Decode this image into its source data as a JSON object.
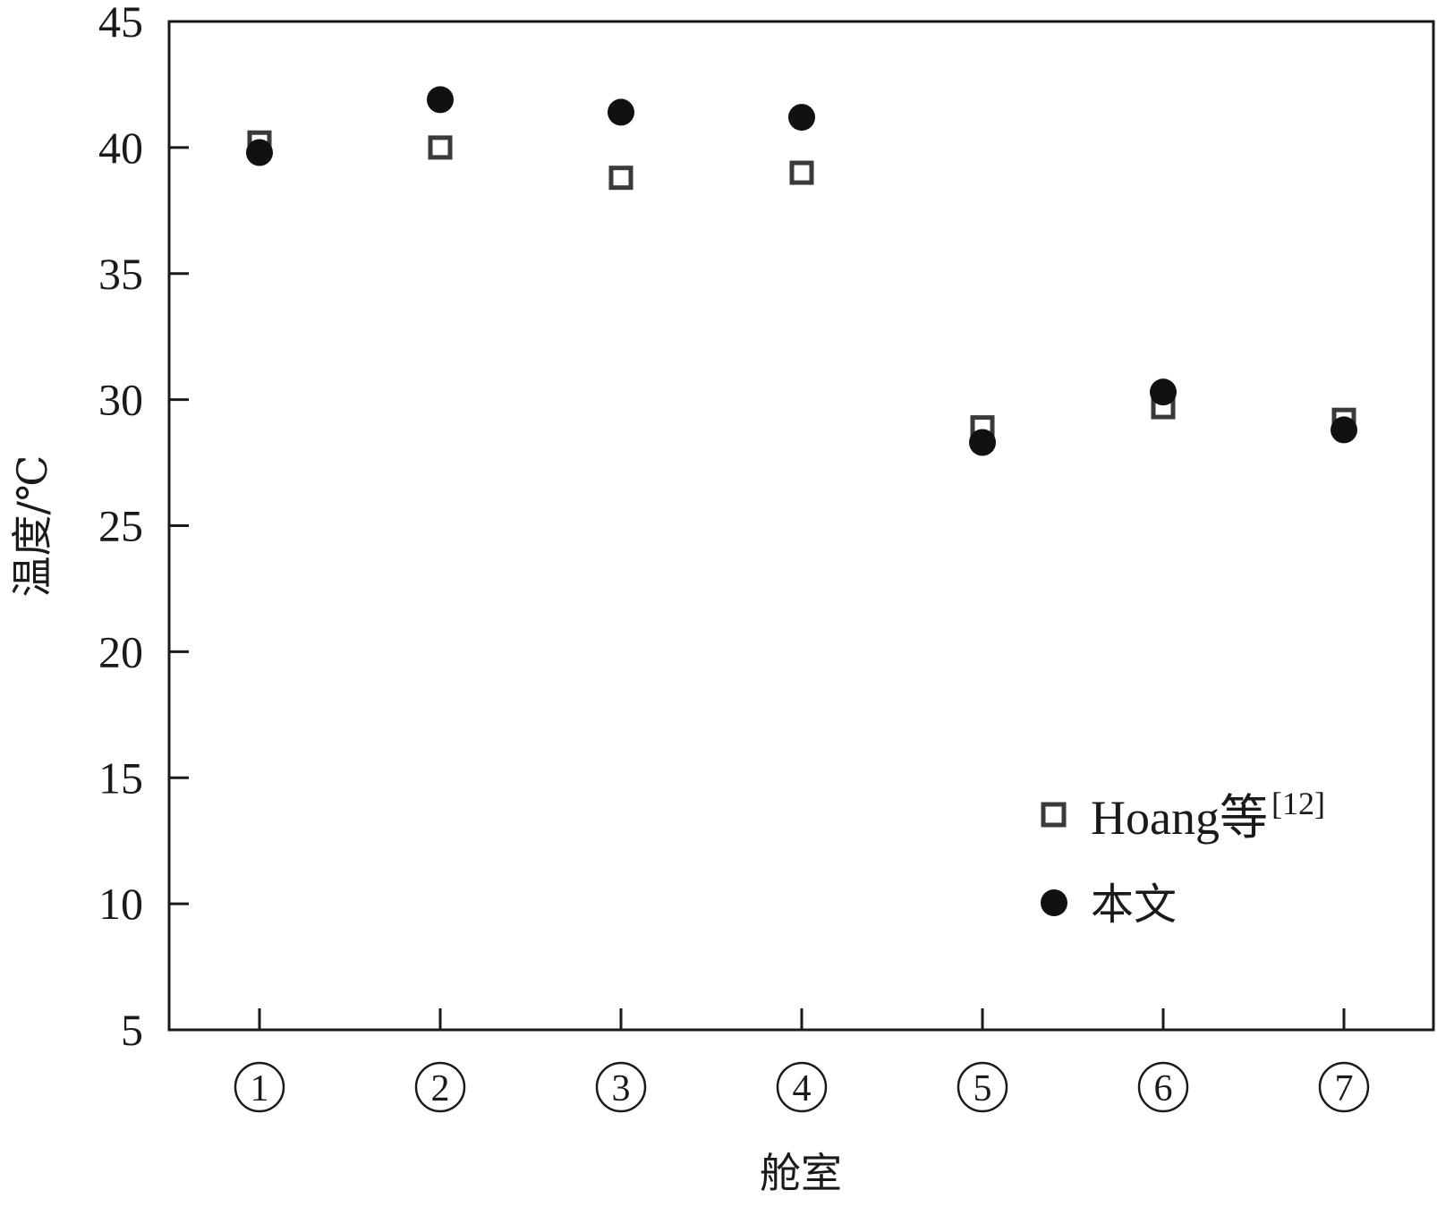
{
  "chart_data": {
    "type": "scatter",
    "categories": [
      "①",
      "②",
      "③",
      "④",
      "⑤",
      "⑥",
      "⑦"
    ],
    "xlabel": "舱室",
    "ylabel": "温度/℃",
    "ylim": [
      5,
      45
    ],
    "yticks": [
      "5",
      "10",
      "15",
      "20",
      "25",
      "30",
      "35",
      "40",
      "45"
    ],
    "grid": false,
    "legend_position": "bottom-right",
    "series": [
      {
        "name": "Hoang等",
        "name_superscript": "[12]",
        "marker": "open-square",
        "color": "#3a3a3a",
        "values": [
          40.2,
          40.0,
          38.8,
          39.0,
          28.9,
          29.7,
          29.2
        ]
      },
      {
        "name": "本文",
        "marker": "filled-circle",
        "color": "#111111",
        "values": [
          39.8,
          41.9,
          41.4,
          41.2,
          28.3,
          30.3,
          28.8
        ]
      }
    ]
  }
}
